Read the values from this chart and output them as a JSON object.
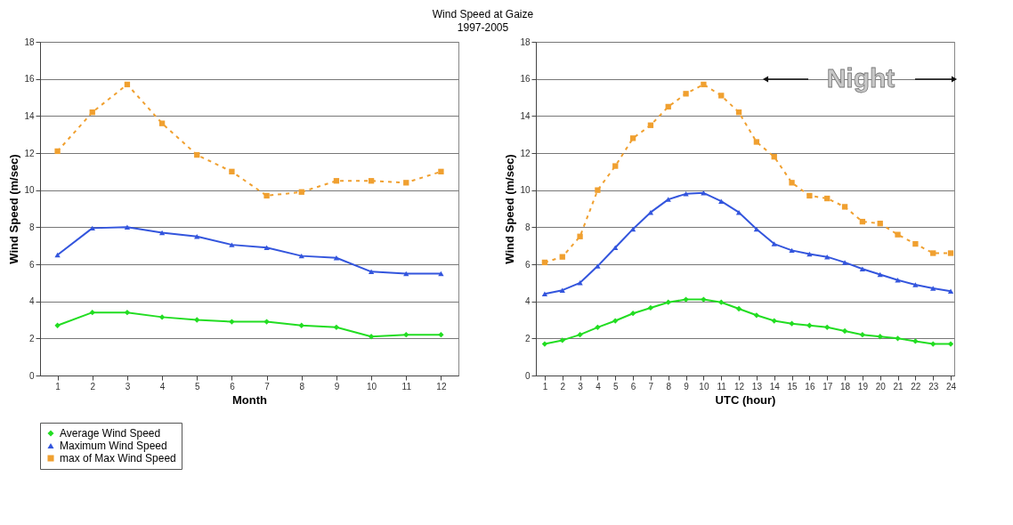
{
  "chart_data": [
    {
      "type": "line",
      "title": "Wind Speed at Gaize",
      "subtitle": "1997-2005",
      "xlabel": "Month",
      "ylabel": "Wind Speed (m/sec)",
      "x": [
        1,
        2,
        3,
        4,
        5,
        6,
        7,
        8,
        9,
        10,
        11,
        12
      ],
      "xlim": [
        0.5,
        12.5
      ],
      "xticks": [
        1,
        2,
        3,
        4,
        5,
        6,
        7,
        8,
        9,
        10,
        11,
        12
      ],
      "ylim": [
        0,
        18
      ],
      "yticks": [
        0,
        2,
        4,
        6,
        8,
        10,
        12,
        14,
        16,
        18
      ],
      "grid": "y",
      "legend": "bottom",
      "series": [
        {
          "name": "Average Wind Speed",
          "color": "#22dd22",
          "marker": "diamond",
          "line_style": "solid",
          "values": [
            2.7,
            3.4,
            3.4,
            3.15,
            3.0,
            2.9,
            2.9,
            2.7,
            2.6,
            2.1,
            2.2,
            2.2
          ]
        },
        {
          "name": "Maximum Wind Speed",
          "color": "#3355dd",
          "marker": "triangle",
          "line_style": "solid",
          "values": [
            6.5,
            7.95,
            8.0,
            7.7,
            7.5,
            7.05,
            6.9,
            6.45,
            6.35,
            5.6,
            5.5,
            5.5
          ]
        },
        {
          "name": "max of Max Wind Speed",
          "color": "#f0a030",
          "marker": "square",
          "line_style": "dashed",
          "values": [
            12.1,
            14.2,
            15.7,
            13.6,
            11.9,
            11.0,
            9.7,
            9.9,
            10.5,
            10.5,
            10.4,
            11.0
          ]
        }
      ]
    },
    {
      "type": "line",
      "xlabel": "UTC (hour)",
      "ylabel": "Wind Speed (m/sec)",
      "x": [
        1,
        2,
        3,
        4,
        5,
        6,
        7,
        8,
        9,
        10,
        11,
        12,
        13,
        14,
        15,
        16,
        17,
        18,
        19,
        20,
        21,
        22,
        23,
        24
      ],
      "xlim": [
        0.5,
        24.2
      ],
      "xticks": [
        1,
        2,
        3,
        4,
        5,
        6,
        7,
        8,
        9,
        10,
        11,
        12,
        13,
        14,
        15,
        16,
        17,
        18,
        19,
        20,
        21,
        22,
        23,
        24
      ],
      "ylim": [
        0,
        18
      ],
      "yticks": [
        0,
        2,
        4,
        6,
        8,
        10,
        12,
        14,
        16,
        18
      ],
      "grid": "y",
      "legend": "bottom",
      "annotations": [
        "Night"
      ],
      "series": [
        {
          "name": "Average Wind Speed",
          "color": "#22dd22",
          "marker": "diamond",
          "line_style": "solid",
          "values": [
            1.7,
            1.9,
            2.2,
            2.6,
            2.95,
            3.35,
            3.65,
            3.95,
            4.1,
            4.1,
            3.95,
            3.6,
            3.25,
            2.95,
            2.8,
            2.7,
            2.6,
            2.4,
            2.2,
            2.1,
            2.0,
            1.85,
            1.7,
            1.7
          ]
        },
        {
          "name": "Maximum Wind Speed",
          "color": "#3355dd",
          "marker": "triangle",
          "line_style": "solid",
          "values": [
            4.4,
            4.6,
            5.0,
            5.9,
            6.9,
            7.9,
            8.8,
            9.5,
            9.8,
            9.85,
            9.4,
            8.8,
            7.9,
            7.1,
            6.75,
            6.55,
            6.4,
            6.1,
            5.75,
            5.45,
            5.15,
            4.9,
            4.7,
            4.55
          ]
        },
        {
          "name": "max of Max Wind Speed",
          "color": "#f0a030",
          "marker": "square",
          "line_style": "dashed",
          "values": [
            6.1,
            6.4,
            7.5,
            10.0,
            11.3,
            12.8,
            13.5,
            14.5,
            15.2,
            15.7,
            15.1,
            14.2,
            12.6,
            11.8,
            10.4,
            9.7,
            9.55,
            9.1,
            8.3,
            8.2,
            7.6,
            7.1,
            6.6,
            6.6
          ]
        }
      ]
    }
  ]
}
